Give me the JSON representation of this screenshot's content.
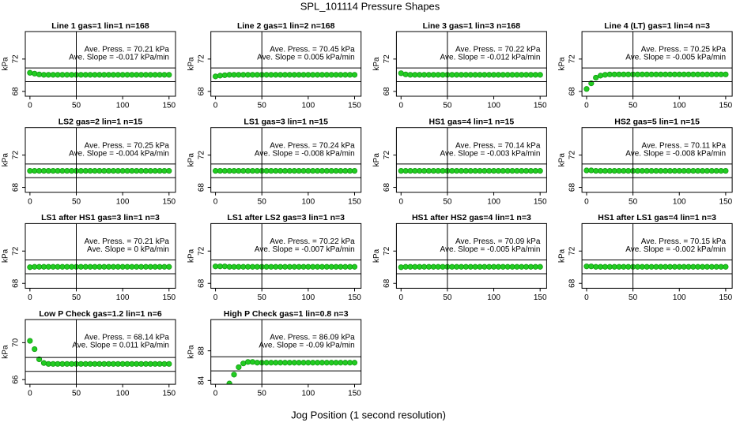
{
  "title": "SPL_101114  Pressure Shapes",
  "xlabel": "Jog Position (1 second resolution)",
  "chart_data": [
    {
      "type": "scatter",
      "title": "Line 1 gas=1 lin=1 n=168",
      "ylabel": "kPa",
      "annotations": [
        "Ave. Press. = 70.21 kPa",
        "Ave. Slope = -0.017 kPa/min"
      ],
      "color": "#22cc22",
      "x": [
        0,
        5,
        10,
        15,
        20,
        25,
        30,
        35,
        40,
        45,
        50,
        55,
        60,
        65,
        70,
        75,
        80,
        85,
        90,
        95,
        100,
        105,
        110,
        115,
        120,
        125,
        130,
        135,
        140,
        145,
        150
      ],
      "values": [
        70.3,
        70.2,
        70.1,
        70.05,
        70.05,
        70.05,
        70.05,
        70.05,
        70.05,
        70.05,
        70.05,
        70.05,
        70.05,
        70.05,
        70.05,
        70.05,
        70.05,
        70.05,
        70.05,
        70.05,
        70.05,
        70.05,
        70.05,
        70.05,
        70.05,
        70.05,
        70.05,
        70.05,
        70.05,
        70.05,
        70.05
      ],
      "xlim": [
        -5,
        157
      ],
      "ylim": [
        67.4,
        75.4
      ],
      "xticks": [
        0,
        50,
        100,
        150
      ],
      "yticks": [
        68,
        72
      ],
      "hlines": [
        69.2,
        70.9
      ],
      "vline": 50
    },
    {
      "type": "scatter",
      "title": "Line 2 gas=1 lin=2 n=168",
      "ylabel": "kPa",
      "annotations": [
        "Ave. Press. = 70.45 kPa",
        "Ave. Slope = 0.005 kPa/min"
      ],
      "color": "#22cc22",
      "x": [
        0,
        5,
        10,
        15,
        20,
        25,
        30,
        35,
        40,
        45,
        50,
        55,
        60,
        65,
        70,
        75,
        80,
        85,
        90,
        95,
        100,
        105,
        110,
        115,
        120,
        125,
        130,
        135,
        140,
        145,
        150
      ],
      "values": [
        69.85,
        69.95,
        70.0,
        70.05,
        70.05,
        70.05,
        70.05,
        70.05,
        70.05,
        70.05,
        70.05,
        70.05,
        70.05,
        70.05,
        70.05,
        70.05,
        70.05,
        70.05,
        70.05,
        70.05,
        70.05,
        70.05,
        70.05,
        70.05,
        70.05,
        70.05,
        70.05,
        70.05,
        70.05,
        70.05,
        70.05
      ],
      "xlim": [
        -5,
        157
      ],
      "ylim": [
        67.4,
        75.4
      ],
      "xticks": [
        0,
        50,
        100,
        150
      ],
      "yticks": [
        68,
        72
      ],
      "hlines": [
        69.2,
        70.9
      ],
      "vline": 50
    },
    {
      "type": "scatter",
      "title": "Line 3 gas=1 lin=3 n=168",
      "ylabel": "kPa",
      "annotations": [
        "Ave. Press. = 70.22 kPa",
        "Ave. Slope = -0.012 kPa/min"
      ],
      "color": "#22cc22",
      "x": [
        0,
        5,
        10,
        15,
        20,
        25,
        30,
        35,
        40,
        45,
        50,
        55,
        60,
        65,
        70,
        75,
        80,
        85,
        90,
        95,
        100,
        105,
        110,
        115,
        120,
        125,
        130,
        135,
        140,
        145,
        150
      ],
      "values": [
        70.25,
        70.1,
        70.05,
        70.05,
        70.05,
        70.05,
        70.05,
        70.05,
        70.05,
        70.05,
        70.05,
        70.05,
        70.05,
        70.05,
        70.05,
        70.05,
        70.05,
        70.05,
        70.05,
        70.05,
        70.05,
        70.05,
        70.05,
        70.05,
        70.05,
        70.05,
        70.05,
        70.05,
        70.05,
        70.05,
        70.05
      ],
      "xlim": [
        -5,
        157
      ],
      "ylim": [
        67.4,
        75.4
      ],
      "xticks": [
        0,
        50,
        100,
        150
      ],
      "yticks": [
        68,
        72
      ],
      "hlines": [
        69.2,
        70.9
      ],
      "vline": 50
    },
    {
      "type": "scatter",
      "title": "Line 4 (LT) gas=1 lin=4 n=3",
      "ylabel": "kPa",
      "annotations": [
        "Ave. Press. = 70.25 kPa",
        "Ave. Slope = -0.005 kPa/min"
      ],
      "color": "#22cc22",
      "x": [
        0,
        5,
        10,
        15,
        20,
        25,
        30,
        35,
        40,
        45,
        50,
        55,
        60,
        65,
        70,
        75,
        80,
        85,
        90,
        95,
        100,
        105,
        110,
        115,
        120,
        125,
        130,
        135,
        140,
        145,
        150
      ],
      "values": [
        68.3,
        69.0,
        69.7,
        69.95,
        70.05,
        70.1,
        70.1,
        70.1,
        70.1,
        70.1,
        70.1,
        70.1,
        70.1,
        70.1,
        70.1,
        70.1,
        70.1,
        70.1,
        70.1,
        70.1,
        70.1,
        70.1,
        70.1,
        70.1,
        70.1,
        70.1,
        70.1,
        70.1,
        70.1,
        70.1,
        70.1
      ],
      "xlim": [
        -5,
        157
      ],
      "ylim": [
        67.4,
        75.4
      ],
      "xticks": [
        0,
        50,
        100,
        150
      ],
      "yticks": [
        68,
        72
      ],
      "hlines": [
        69.2,
        70.9
      ],
      "vline": 50
    },
    {
      "type": "scatter",
      "title": "LS2 gas=2 lin=1 n=15",
      "ylabel": "kPa",
      "annotations": [
        "Ave. Press. = 70.25 kPa",
        "Ave. Slope = -0.004 kPa/min"
      ],
      "color": "#22cc22",
      "x": [
        0,
        5,
        10,
        15,
        20,
        25,
        30,
        35,
        40,
        45,
        50,
        55,
        60,
        65,
        70,
        75,
        80,
        85,
        90,
        95,
        100,
        105,
        110,
        115,
        120,
        125,
        130,
        135,
        140,
        145,
        150
      ],
      "values": [
        70.05,
        70.05,
        70.05,
        70.05,
        70.05,
        70.05,
        70.05,
        70.05,
        70.05,
        70.05,
        70.05,
        70.05,
        70.05,
        70.05,
        70.05,
        70.05,
        70.05,
        70.05,
        70.05,
        70.05,
        70.05,
        70.05,
        70.05,
        70.05,
        70.05,
        70.05,
        70.05,
        70.05,
        70.05,
        70.05,
        70.05
      ],
      "xlim": [
        -5,
        157
      ],
      "ylim": [
        67.4,
        75.4
      ],
      "xticks": [
        0,
        50,
        100,
        150
      ],
      "yticks": [
        68,
        72
      ],
      "hlines": [
        69.2,
        70.9
      ],
      "vline": 50
    },
    {
      "type": "scatter",
      "title": "LS1 gas=3 lin=1 n=15",
      "ylabel": "kPa",
      "annotations": [
        "Ave. Press. = 70.24 kPa",
        "Ave. Slope = -0.008 kPa/min"
      ],
      "color": "#22cc22",
      "x": [
        0,
        5,
        10,
        15,
        20,
        25,
        30,
        35,
        40,
        45,
        50,
        55,
        60,
        65,
        70,
        75,
        80,
        85,
        90,
        95,
        100,
        105,
        110,
        115,
        120,
        125,
        130,
        135,
        140,
        145,
        150
      ],
      "values": [
        70.05,
        70.05,
        70.05,
        70.05,
        70.05,
        70.05,
        70.05,
        70.05,
        70.05,
        70.05,
        70.05,
        70.05,
        70.05,
        70.05,
        70.05,
        70.05,
        70.05,
        70.05,
        70.05,
        70.05,
        70.05,
        70.05,
        70.05,
        70.05,
        70.05,
        70.05,
        70.05,
        70.05,
        70.05,
        70.05,
        70.05
      ],
      "xlim": [
        -5,
        157
      ],
      "ylim": [
        67.4,
        75.4
      ],
      "xticks": [
        0,
        50,
        100,
        150
      ],
      "yticks": [
        68,
        72
      ],
      "hlines": [
        69.2,
        70.9
      ],
      "vline": 50
    },
    {
      "type": "scatter",
      "title": "HS1 gas=4 lin=1 n=15",
      "ylabel": "kPa",
      "annotations": [
        "Ave. Press. = 70.14 kPa",
        "Ave. Slope = -0.003 kPa/min"
      ],
      "color": "#22cc22",
      "x": [
        0,
        5,
        10,
        15,
        20,
        25,
        30,
        35,
        40,
        45,
        50,
        55,
        60,
        65,
        70,
        75,
        80,
        85,
        90,
        95,
        100,
        105,
        110,
        115,
        120,
        125,
        130,
        135,
        140,
        145,
        150
      ],
      "values": [
        70.05,
        70.05,
        70.05,
        70.05,
        70.05,
        70.05,
        70.05,
        70.05,
        70.05,
        70.05,
        70.05,
        70.05,
        70.05,
        70.05,
        70.05,
        70.05,
        70.05,
        70.05,
        70.05,
        70.05,
        70.05,
        70.05,
        70.05,
        70.05,
        70.05,
        70.05,
        70.05,
        70.05,
        70.05,
        70.05,
        70.05
      ],
      "xlim": [
        -5,
        157
      ],
      "ylim": [
        67.4,
        75.4
      ],
      "xticks": [
        0,
        50,
        100,
        150
      ],
      "yticks": [
        68,
        72
      ],
      "hlines": [
        69.2,
        70.9
      ],
      "vline": 50
    },
    {
      "type": "scatter",
      "title": "HS2 gas=5 lin=1 n=15",
      "ylabel": "kPa",
      "annotations": [
        "Ave. Press. = 70.11 kPa",
        "Ave. Slope = -0.008 kPa/min"
      ],
      "color": "#22cc22",
      "x": [
        0,
        5,
        10,
        15,
        20,
        25,
        30,
        35,
        40,
        45,
        50,
        55,
        60,
        65,
        70,
        75,
        80,
        85,
        90,
        95,
        100,
        105,
        110,
        115,
        120,
        125,
        130,
        135,
        140,
        145,
        150
      ],
      "values": [
        70.1,
        70.1,
        70.05,
        70.05,
        70.05,
        70.05,
        70.05,
        70.05,
        70.05,
        70.05,
        70.05,
        70.05,
        70.05,
        70.05,
        70.05,
        70.05,
        70.05,
        70.05,
        70.05,
        70.05,
        70.05,
        70.05,
        70.05,
        70.05,
        70.05,
        70.05,
        70.05,
        70.05,
        70.05,
        70.05,
        70.05
      ],
      "xlim": [
        -5,
        157
      ],
      "ylim": [
        67.4,
        75.4
      ],
      "xticks": [
        0,
        50,
        100,
        150
      ],
      "yticks": [
        68,
        72
      ],
      "hlines": [
        69.2,
        70.9
      ],
      "vline": 50
    },
    {
      "type": "scatter",
      "title": "LS1 after HS1 gas=3 lin=1 n=3",
      "ylabel": "kPa",
      "annotations": [
        "Ave. Press. = 70.21 kPa",
        "Ave. Slope = 0 kPa/min"
      ],
      "color": "#22cc22",
      "x": [
        0,
        5,
        10,
        15,
        20,
        25,
        30,
        35,
        40,
        45,
        50,
        55,
        60,
        65,
        70,
        75,
        80,
        85,
        90,
        95,
        100,
        105,
        110,
        115,
        120,
        125,
        130,
        135,
        140,
        145,
        150
      ],
      "values": [
        70.0,
        70.05,
        70.05,
        70.05,
        70.05,
        70.05,
        70.05,
        70.05,
        70.05,
        70.05,
        70.05,
        70.05,
        70.05,
        70.05,
        70.05,
        70.05,
        70.05,
        70.05,
        70.05,
        70.05,
        70.05,
        70.05,
        70.05,
        70.05,
        70.05,
        70.05,
        70.05,
        70.05,
        70.05,
        70.05,
        70.05
      ],
      "xlim": [
        -5,
        157
      ],
      "ylim": [
        67.4,
        75.4
      ],
      "xticks": [
        0,
        50,
        100,
        150
      ],
      "yticks": [
        68,
        72
      ],
      "hlines": [
        69.2,
        70.9
      ],
      "vline": 50
    },
    {
      "type": "scatter",
      "title": "LS1 after LS2 gas=3 lin=1 n=3",
      "ylabel": "kPa",
      "annotations": [
        "Ave. Press. = 70.22 kPa",
        "Ave. Slope = -0.007 kPa/min"
      ],
      "color": "#22cc22",
      "x": [
        0,
        5,
        10,
        15,
        20,
        25,
        30,
        35,
        40,
        45,
        50,
        55,
        60,
        65,
        70,
        75,
        80,
        85,
        90,
        95,
        100,
        105,
        110,
        115,
        120,
        125,
        130,
        135,
        140,
        145,
        150
      ],
      "values": [
        70.1,
        70.1,
        70.1,
        70.05,
        70.05,
        70.05,
        70.05,
        70.05,
        70.05,
        70.05,
        70.05,
        70.05,
        70.05,
        70.05,
        70.05,
        70.05,
        70.05,
        70.05,
        70.05,
        70.05,
        70.05,
        70.05,
        70.05,
        70.05,
        70.05,
        70.05,
        70.05,
        70.05,
        70.05,
        70.05,
        70.05
      ],
      "xlim": [
        -5,
        157
      ],
      "ylim": [
        67.4,
        75.4
      ],
      "xticks": [
        0,
        50,
        100,
        150
      ],
      "yticks": [
        68,
        72
      ],
      "hlines": [
        69.2,
        70.9
      ],
      "vline": 50
    },
    {
      "type": "scatter",
      "title": "HS1 after HS2 gas=4 lin=1 n=3",
      "ylabel": "kPa",
      "annotations": [
        "Ave. Press. = 70.09 kPa",
        "Ave. Slope = -0.005 kPa/min"
      ],
      "color": "#22cc22",
      "x": [
        0,
        5,
        10,
        15,
        20,
        25,
        30,
        35,
        40,
        45,
        50,
        55,
        60,
        65,
        70,
        75,
        80,
        85,
        90,
        95,
        100,
        105,
        110,
        115,
        120,
        125,
        130,
        135,
        140,
        145,
        150
      ],
      "values": [
        70.0,
        70.05,
        70.05,
        70.05,
        70.05,
        70.05,
        70.05,
        70.05,
        70.05,
        70.05,
        70.05,
        70.05,
        70.05,
        70.05,
        70.05,
        70.05,
        70.05,
        70.05,
        70.05,
        70.05,
        70.05,
        70.05,
        70.05,
        70.05,
        70.05,
        70.05,
        70.05,
        70.05,
        70.05,
        70.05,
        70.05
      ],
      "xlim": [
        -5,
        157
      ],
      "ylim": [
        67.4,
        75.4
      ],
      "xticks": [
        0,
        50,
        100,
        150
      ],
      "yticks": [
        68,
        72
      ],
      "hlines": [
        69.2,
        70.9
      ],
      "vline": 50
    },
    {
      "type": "scatter",
      "title": "HS1 after LS1 gas=4 lin=1 n=3",
      "ylabel": "kPa",
      "annotations": [
        "Ave. Press. = 70.15 kPa",
        "Ave. Slope = -0.002 kPa/min"
      ],
      "color": "#22cc22",
      "x": [
        0,
        5,
        10,
        15,
        20,
        25,
        30,
        35,
        40,
        45,
        50,
        55,
        60,
        65,
        70,
        75,
        80,
        85,
        90,
        95,
        100,
        105,
        110,
        115,
        120,
        125,
        130,
        135,
        140,
        145,
        150
      ],
      "values": [
        70.1,
        70.1,
        70.05,
        70.05,
        70.05,
        70.05,
        70.05,
        70.05,
        70.05,
        70.05,
        70.05,
        70.05,
        70.05,
        70.05,
        70.05,
        70.05,
        70.05,
        70.05,
        70.05,
        70.05,
        70.05,
        70.05,
        70.05,
        70.05,
        70.05,
        70.05,
        70.05,
        70.05,
        70.05,
        70.05,
        70.05
      ],
      "xlim": [
        -5,
        157
      ],
      "ylim": [
        67.4,
        75.4
      ],
      "xticks": [
        0,
        50,
        100,
        150
      ],
      "yticks": [
        68,
        72
      ],
      "hlines": [
        69.2,
        70.9
      ],
      "vline": 50
    },
    {
      "type": "scatter",
      "title": "Low P Check gas=1.2 lin=1 n=6",
      "ylabel": "kPa",
      "annotations": [
        "Ave. Press. = 68.14 kPa",
        "Ave. Slope = 0.011 kPa/min"
      ],
      "color": "#22cc22",
      "x": [
        0,
        5,
        10,
        15,
        20,
        25,
        30,
        35,
        40,
        45,
        50,
        55,
        60,
        65,
        70,
        75,
        80,
        85,
        90,
        95,
        100,
        105,
        110,
        115,
        120,
        125,
        130,
        135,
        140,
        145,
        150
      ],
      "values": [
        70.2,
        69.3,
        68.2,
        67.8,
        67.7,
        67.7,
        67.7,
        67.7,
        67.7,
        67.7,
        67.7,
        67.7,
        67.7,
        67.7,
        67.7,
        67.7,
        67.7,
        67.7,
        67.7,
        67.7,
        67.7,
        67.7,
        67.7,
        67.7,
        67.7,
        67.7,
        67.7,
        67.7,
        67.7,
        67.7,
        67.7
      ],
      "xlim": [
        -5,
        157
      ],
      "ylim": [
        65.5,
        72.5
      ],
      "xticks": [
        0,
        50,
        100,
        150
      ],
      "yticks": [
        66,
        70
      ],
      "hlines": [
        66.9,
        68.4
      ],
      "vline": 50
    },
    {
      "type": "scatter",
      "title": "High P Check gas=1 lin=0.8 n=3",
      "ylabel": "kPa",
      "annotations": [
        "Ave. Press. = 86.09 kPa",
        "Ave. Slope = -0.09 kPa/min"
      ],
      "color": "#22cc22",
      "x": [
        0,
        5,
        10,
        15,
        20,
        25,
        30,
        35,
        40,
        45,
        50,
        55,
        60,
        65,
        70,
        75,
        80,
        85,
        90,
        95,
        100,
        105,
        110,
        115,
        120,
        125,
        130,
        135,
        140,
        145,
        150
      ],
      "values": [
        null,
        null,
        null,
        83.6,
        84.8,
        85.8,
        86.3,
        86.5,
        86.5,
        86.4,
        86.4,
        86.4,
        86.4,
        86.4,
        86.4,
        86.4,
        86.4,
        86.4,
        86.4,
        86.4,
        86.4,
        86.4,
        86.4,
        86.4,
        86.4,
        86.4,
        86.4,
        86.4,
        86.4,
        86.4,
        86.4
      ],
      "xlim": [
        -5,
        157
      ],
      "ylim": [
        83.5,
        92.2
      ],
      "xticks": [
        0,
        50,
        100,
        150
      ],
      "yticks": [
        84,
        88
      ],
      "hlines": [
        85.3,
        87.2
      ],
      "vline": 50
    }
  ]
}
